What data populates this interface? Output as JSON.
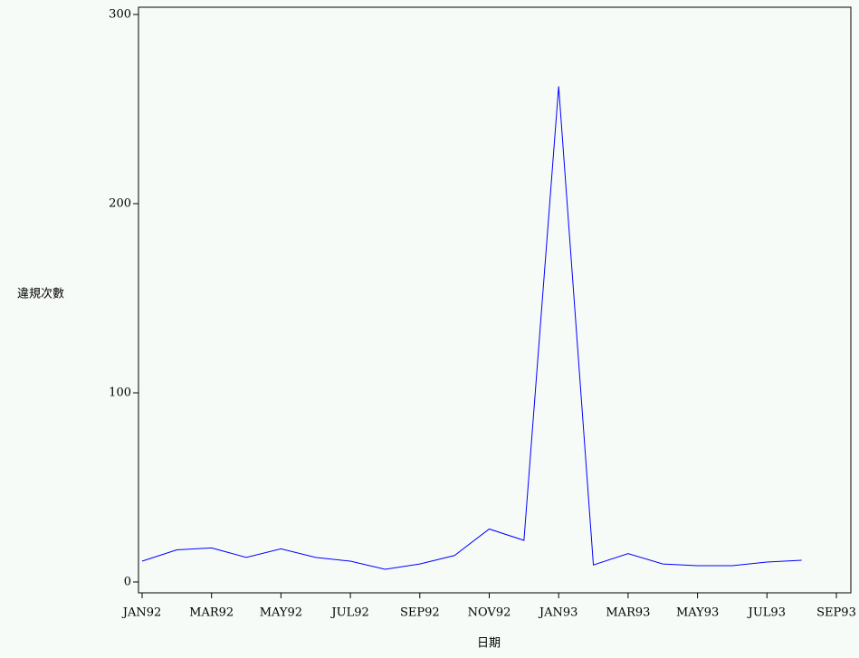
{
  "chart_data": {
    "type": "line",
    "y_label": "違規次數",
    "x_label": "日期",
    "x": [
      "1992-01",
      "1992-02",
      "1992-03",
      "1992-04",
      "1992-05",
      "1992-06",
      "1992-07",
      "1992-08",
      "1992-09",
      "1992-10",
      "1992-11",
      "1992-12",
      "1993-01",
      "1993-02",
      "1993-03",
      "1993-04",
      "1993-05",
      "1993-06",
      "1993-07",
      "1993-08"
    ],
    "series": [
      {
        "color": "#0000ff",
        "values": [
          11,
          17,
          18,
          13,
          17.5,
          13,
          11,
          6.7,
          9.5,
          14,
          28,
          22,
          262,
          9,
          15,
          9.5,
          8.6,
          8.6,
          10.5,
          11.5
        ]
      }
    ],
    "xlim": [
      "1992-01",
      "1993-09"
    ],
    "xticks": [
      {
        "value": "1992-01",
        "label": "JAN92"
      },
      {
        "value": "1992-03",
        "label": "MAR92"
      },
      {
        "value": "1992-05",
        "label": "MAY92"
      },
      {
        "value": "1992-07",
        "label": "JUL92"
      },
      {
        "value": "1992-09",
        "label": "SEP92"
      },
      {
        "value": "1992-11",
        "label": "NOV92"
      },
      {
        "value": "1993-01",
        "label": "JAN93"
      },
      {
        "value": "1993-03",
        "label": "MAR93"
      },
      {
        "value": "1993-05",
        "label": "MAY93"
      },
      {
        "value": "1993-07",
        "label": "JUL93"
      },
      {
        "value": "1993-09",
        "label": "SEP93"
      }
    ],
    "ylim": [
      0,
      300
    ],
    "yticks": [
      0,
      100,
      200,
      300
    ]
  }
}
